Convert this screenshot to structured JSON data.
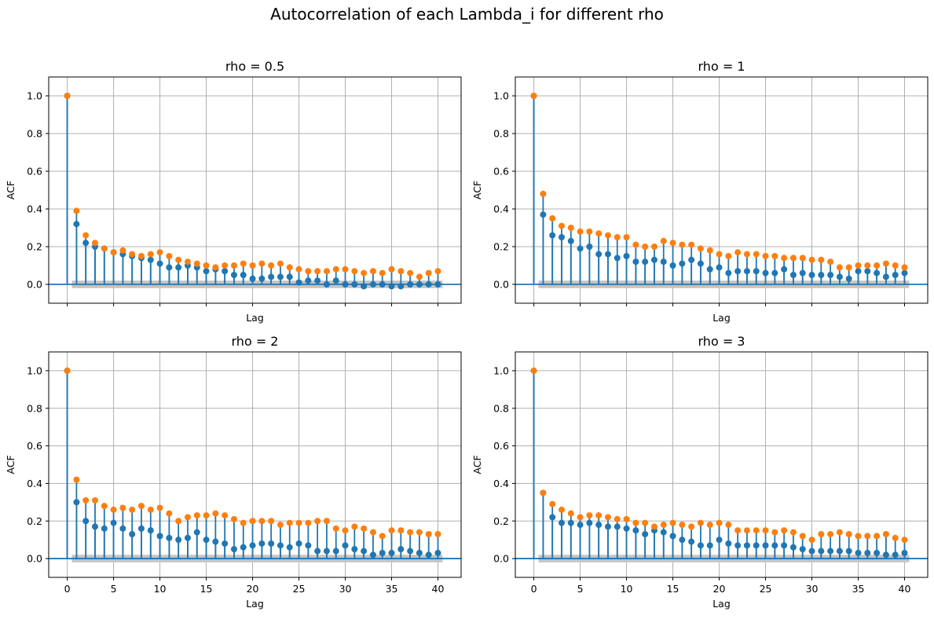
{
  "figure": {
    "suptitle": "Autocorrelation of each Lambda_i for different rho"
  },
  "colors": {
    "series_blue": "#1f77b4",
    "series_orange": "#ff7f0e",
    "confidence_band": "#c4c4c4",
    "grid": "#b0b0b0"
  },
  "chart_data": [
    {
      "type": "stem",
      "title": "rho = 0.5",
      "xlabel": "Lag",
      "ylabel": "ACF",
      "xlim": [
        -2,
        42.5
      ],
      "ylim": [
        -0.1,
        1.1
      ],
      "x_ticks": [
        0,
        5,
        10,
        15,
        20,
        25,
        30,
        35,
        40
      ],
      "x_tick_labels_visible": false,
      "y_ticks": [
        0.0,
        0.2,
        0.4,
        0.6,
        0.8,
        1.0
      ],
      "y_tick_labels": [
        "0.0",
        "0.2",
        "0.4",
        "0.6",
        "0.8",
        "1.0"
      ],
      "grid": true,
      "confidence_band": [
        -0.02,
        0.02
      ],
      "x": [
        0,
        1,
        2,
        3,
        4,
        5,
        6,
        7,
        8,
        9,
        10,
        11,
        12,
        13,
        14,
        15,
        16,
        17,
        18,
        19,
        20,
        21,
        22,
        23,
        24,
        25,
        26,
        27,
        28,
        29,
        30,
        31,
        32,
        33,
        34,
        35,
        36,
        37,
        38,
        39,
        40
      ],
      "series": [
        {
          "color": "#1f77b4",
          "values": [
            1.0,
            0.32,
            0.22,
            0.2,
            0.19,
            0.17,
            0.16,
            0.15,
            0.14,
            0.13,
            0.11,
            0.09,
            0.09,
            0.1,
            0.09,
            0.07,
            0.08,
            0.07,
            0.05,
            0.05,
            0.03,
            0.03,
            0.04,
            0.04,
            0.04,
            0.01,
            0.02,
            0.02,
            0.0,
            0.02,
            0.0,
            0.0,
            -0.01,
            0.0,
            0.0,
            -0.01,
            -0.01,
            0.0,
            0.0,
            0.0,
            0.0
          ]
        },
        {
          "color": "#ff7f0e",
          "values": [
            1.0,
            0.39,
            0.26,
            0.22,
            0.19,
            0.17,
            0.18,
            0.16,
            0.15,
            0.16,
            0.17,
            0.15,
            0.13,
            0.12,
            0.11,
            0.1,
            0.09,
            0.1,
            0.1,
            0.11,
            0.1,
            0.11,
            0.1,
            0.11,
            0.09,
            0.08,
            0.07,
            0.07,
            0.07,
            0.08,
            0.08,
            0.07,
            0.06,
            0.07,
            0.06,
            0.08,
            0.07,
            0.06,
            0.04,
            0.06,
            0.07
          ]
        }
      ]
    },
    {
      "type": "stem",
      "title": "rho = 1",
      "xlabel": "Lag",
      "ylabel": "ACF",
      "xlim": [
        -2,
        42.5
      ],
      "ylim": [
        -0.1,
        1.1
      ],
      "x_ticks": [
        0,
        5,
        10,
        15,
        20,
        25,
        30,
        35,
        40
      ],
      "x_tick_labels_visible": false,
      "y_ticks": [
        0.0,
        0.2,
        0.4,
        0.6,
        0.8,
        1.0
      ],
      "y_tick_labels": [
        "0.0",
        "0.2",
        "0.4",
        "0.6",
        "0.8",
        "1.0"
      ],
      "grid": true,
      "confidence_band": [
        -0.02,
        0.02
      ],
      "x": [
        0,
        1,
        2,
        3,
        4,
        5,
        6,
        7,
        8,
        9,
        10,
        11,
        12,
        13,
        14,
        15,
        16,
        17,
        18,
        19,
        20,
        21,
        22,
        23,
        24,
        25,
        26,
        27,
        28,
        29,
        30,
        31,
        32,
        33,
        34,
        35,
        36,
        37,
        38,
        39,
        40
      ],
      "series": [
        {
          "color": "#1f77b4",
          "values": [
            1.0,
            0.37,
            0.26,
            0.25,
            0.23,
            0.19,
            0.2,
            0.16,
            0.16,
            0.14,
            0.15,
            0.12,
            0.12,
            0.13,
            0.12,
            0.1,
            0.11,
            0.13,
            0.11,
            0.08,
            0.09,
            0.06,
            0.07,
            0.07,
            0.07,
            0.06,
            0.06,
            0.08,
            0.05,
            0.06,
            0.05,
            0.05,
            0.05,
            0.04,
            0.03,
            0.07,
            0.07,
            0.06,
            0.04,
            0.05,
            0.06
          ]
        },
        {
          "color": "#ff7f0e",
          "values": [
            1.0,
            0.48,
            0.35,
            0.31,
            0.3,
            0.28,
            0.28,
            0.27,
            0.26,
            0.25,
            0.25,
            0.21,
            0.2,
            0.2,
            0.23,
            0.22,
            0.21,
            0.21,
            0.19,
            0.18,
            0.16,
            0.15,
            0.17,
            0.16,
            0.16,
            0.15,
            0.15,
            0.14,
            0.14,
            0.14,
            0.13,
            0.13,
            0.12,
            0.09,
            0.09,
            0.1,
            0.1,
            0.1,
            0.11,
            0.1,
            0.09
          ]
        }
      ]
    },
    {
      "type": "stem",
      "title": "rho = 2",
      "xlabel": "Lag",
      "ylabel": "ACF",
      "xlim": [
        -2,
        42.5
      ],
      "ylim": [
        -0.1,
        1.1
      ],
      "x_ticks": [
        0,
        5,
        10,
        15,
        20,
        25,
        30,
        35,
        40
      ],
      "x_tick_labels_visible": true,
      "y_ticks": [
        0.0,
        0.2,
        0.4,
        0.6,
        0.8,
        1.0
      ],
      "y_tick_labels": [
        "0.0",
        "0.2",
        "0.4",
        "0.6",
        "0.8",
        "1.0"
      ],
      "grid": true,
      "confidence_band": [
        -0.02,
        0.02
      ],
      "x": [
        0,
        1,
        2,
        3,
        4,
        5,
        6,
        7,
        8,
        9,
        10,
        11,
        12,
        13,
        14,
        15,
        16,
        17,
        18,
        19,
        20,
        21,
        22,
        23,
        24,
        25,
        26,
        27,
        28,
        29,
        30,
        31,
        32,
        33,
        34,
        35,
        36,
        37,
        38,
        39,
        40
      ],
      "series": [
        {
          "color": "#1f77b4",
          "values": [
            1.0,
            0.3,
            0.2,
            0.17,
            0.16,
            0.19,
            0.16,
            0.13,
            0.16,
            0.15,
            0.12,
            0.11,
            0.1,
            0.11,
            0.14,
            0.1,
            0.09,
            0.08,
            0.05,
            0.06,
            0.07,
            0.08,
            0.08,
            0.07,
            0.06,
            0.08,
            0.07,
            0.04,
            0.04,
            0.04,
            0.07,
            0.05,
            0.04,
            0.02,
            0.03,
            0.03,
            0.05,
            0.04,
            0.03,
            0.02,
            0.03
          ]
        },
        {
          "color": "#ff7f0e",
          "values": [
            1.0,
            0.42,
            0.31,
            0.31,
            0.28,
            0.26,
            0.27,
            0.26,
            0.28,
            0.26,
            0.27,
            0.24,
            0.2,
            0.22,
            0.23,
            0.23,
            0.24,
            0.23,
            0.21,
            0.19,
            0.2,
            0.2,
            0.2,
            0.18,
            0.19,
            0.19,
            0.19,
            0.2,
            0.2,
            0.16,
            0.15,
            0.17,
            0.16,
            0.14,
            0.12,
            0.15,
            0.15,
            0.14,
            0.14,
            0.13,
            0.13
          ]
        }
      ]
    },
    {
      "type": "stem",
      "title": "rho = 3",
      "xlabel": "Lag",
      "ylabel": "ACF",
      "xlim": [
        -2,
        42.5
      ],
      "ylim": [
        -0.1,
        1.1
      ],
      "x_ticks": [
        0,
        5,
        10,
        15,
        20,
        25,
        30,
        35,
        40
      ],
      "x_tick_labels_visible": true,
      "y_ticks": [
        0.0,
        0.2,
        0.4,
        0.6,
        0.8,
        1.0
      ],
      "y_tick_labels": [
        "0.0",
        "0.2",
        "0.4",
        "0.6",
        "0.8",
        "1.0"
      ],
      "grid": true,
      "confidence_band": [
        -0.02,
        0.02
      ],
      "x": [
        0,
        1,
        2,
        3,
        4,
        5,
        6,
        7,
        8,
        9,
        10,
        11,
        12,
        13,
        14,
        15,
        16,
        17,
        18,
        19,
        20,
        21,
        22,
        23,
        24,
        25,
        26,
        27,
        28,
        29,
        30,
        31,
        32,
        33,
        34,
        35,
        36,
        37,
        38,
        39,
        40
      ],
      "series": [
        {
          "color": "#1f77b4",
          "values": [
            1.0,
            0.35,
            0.22,
            0.19,
            0.19,
            0.18,
            0.19,
            0.18,
            0.17,
            0.17,
            0.16,
            0.15,
            0.13,
            0.15,
            0.14,
            0.12,
            0.1,
            0.09,
            0.07,
            0.07,
            0.1,
            0.08,
            0.07,
            0.07,
            0.07,
            0.07,
            0.07,
            0.07,
            0.06,
            0.05,
            0.04,
            0.04,
            0.04,
            0.04,
            0.04,
            0.03,
            0.03,
            0.03,
            0.02,
            0.02,
            0.03
          ]
        },
        {
          "color": "#ff7f0e",
          "values": [
            1.0,
            0.35,
            0.29,
            0.26,
            0.24,
            0.22,
            0.23,
            0.23,
            0.22,
            0.21,
            0.21,
            0.19,
            0.19,
            0.17,
            0.18,
            0.19,
            0.18,
            0.17,
            0.19,
            0.18,
            0.19,
            0.18,
            0.15,
            0.15,
            0.15,
            0.15,
            0.14,
            0.15,
            0.14,
            0.12,
            0.1,
            0.13,
            0.13,
            0.14,
            0.13,
            0.12,
            0.12,
            0.12,
            0.13,
            0.11,
            0.1
          ]
        }
      ]
    }
  ]
}
